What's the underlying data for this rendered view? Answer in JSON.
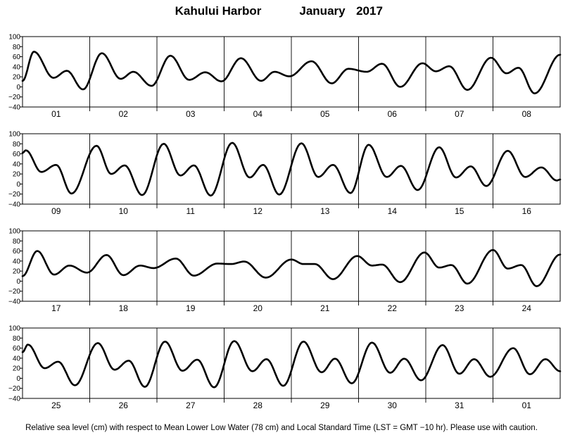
{
  "chart_data": {
    "type": "line",
    "title": {
      "station": "Kahului Harbor",
      "month": "January",
      "year": "2017"
    },
    "footnote": "Relative sea level (cm) with respect to Mean Lower Low Water (78 cm) and Local Standard Time (LST = GMT −10 hr). Please use with caution.",
    "ylim": [
      -40,
      100
    ],
    "yticks": [
      "100",
      "80",
      "60",
      "40",
      "20",
      "0",
      "−20",
      "−40"
    ],
    "grid": "vertical lines at day boundaries",
    "line_color": "#000000",
    "panels": [
      {
        "days": [
          "01",
          "02",
          "03",
          "04",
          "05",
          "06",
          "07",
          "08"
        ],
        "extrema": [
          [
            0,
            12
          ],
          [
            0.17,
            70
          ],
          [
            0.46,
            18
          ],
          [
            0.66,
            32
          ],
          [
            0.9,
            -5
          ],
          [
            1.18,
            67
          ],
          [
            1.46,
            16
          ],
          [
            1.65,
            30
          ],
          [
            1.92,
            2
          ],
          [
            2.2,
            62
          ],
          [
            2.48,
            14
          ],
          [
            2.72,
            29
          ],
          [
            2.96,
            11
          ],
          [
            3.25,
            57
          ],
          [
            3.55,
            12
          ],
          [
            3.75,
            30
          ],
          [
            3.97,
            21
          ],
          [
            4.3,
            51
          ],
          [
            4.6,
            7
          ],
          [
            4.85,
            36
          ],
          [
            5.12,
            30
          ],
          [
            5.35,
            46
          ],
          [
            5.62,
            0
          ],
          [
            5.95,
            47
          ],
          [
            6.15,
            31
          ],
          [
            6.35,
            41
          ],
          [
            6.62,
            -6
          ],
          [
            6.97,
            58
          ],
          [
            7.2,
            27
          ],
          [
            7.38,
            38
          ],
          [
            7.62,
            -13
          ],
          [
            8,
            64
          ]
        ]
      },
      {
        "days": [
          "09",
          "10",
          "11",
          "12",
          "13",
          "14",
          "15",
          "16"
        ],
        "extrema": [
          [
            0,
            62
          ],
          [
            0.05,
            67
          ],
          [
            0.28,
            24
          ],
          [
            0.5,
            38
          ],
          [
            0.73,
            -19
          ],
          [
            1.1,
            76
          ],
          [
            1.32,
            20
          ],
          [
            1.52,
            37
          ],
          [
            1.78,
            -22
          ],
          [
            2.1,
            80
          ],
          [
            2.35,
            17
          ],
          [
            2.55,
            37
          ],
          [
            2.8,
            -23
          ],
          [
            3.12,
            82
          ],
          [
            3.38,
            13
          ],
          [
            3.58,
            38
          ],
          [
            3.82,
            -21
          ],
          [
            4.15,
            81
          ],
          [
            4.4,
            14
          ],
          [
            4.62,
            38
          ],
          [
            4.88,
            -18
          ],
          [
            5.15,
            78
          ],
          [
            5.42,
            14
          ],
          [
            5.63,
            36
          ],
          [
            5.88,
            -12
          ],
          [
            6.2,
            73
          ],
          [
            6.45,
            13
          ],
          [
            6.67,
            35
          ],
          [
            6.9,
            -4
          ],
          [
            7.22,
            66
          ],
          [
            7.48,
            14
          ],
          [
            7.72,
            33
          ],
          [
            7.95,
            7
          ],
          [
            8,
            9
          ]
        ]
      },
      {
        "days": [
          "17",
          "18",
          "19",
          "20",
          "21",
          "22",
          "23",
          "24"
        ],
        "extrema": [
          [
            0,
            10
          ],
          [
            0.22,
            60
          ],
          [
            0.47,
            13
          ],
          [
            0.7,
            31
          ],
          [
            0.96,
            17
          ],
          [
            1.25,
            52
          ],
          [
            1.5,
            12
          ],
          [
            1.75,
            31
          ],
          [
            1.95,
            26
          ],
          [
            2.28,
            45
          ],
          [
            2.55,
            11
          ],
          [
            2.9,
            35
          ],
          [
            3.1,
            34
          ],
          [
            3.3,
            39
          ],
          [
            3.62,
            7
          ],
          [
            4.0,
            43
          ],
          [
            4.18,
            34
          ],
          [
            4.35,
            34
          ],
          [
            4.62,
            4
          ],
          [
            4.98,
            50
          ],
          [
            5.2,
            31
          ],
          [
            5.35,
            33
          ],
          [
            5.62,
            -2
          ],
          [
            5.98,
            57
          ],
          [
            6.2,
            27
          ],
          [
            6.38,
            32
          ],
          [
            6.62,
            -5
          ],
          [
            7.0,
            62
          ],
          [
            7.22,
            25
          ],
          [
            7.42,
            32
          ],
          [
            7.65,
            -10
          ],
          [
            8,
            53
          ]
        ]
      },
      {
        "days": [
          "25",
          "26",
          "27",
          "28",
          "29",
          "30",
          "31",
          "01"
        ],
        "extrema": [
          [
            0,
            52
          ],
          [
            0.08,
            67
          ],
          [
            0.33,
            20
          ],
          [
            0.53,
            33
          ],
          [
            0.78,
            -14
          ],
          [
            1.12,
            70
          ],
          [
            1.37,
            17
          ],
          [
            1.58,
            35
          ],
          [
            1.82,
            -17
          ],
          [
            2.12,
            73
          ],
          [
            2.38,
            15
          ],
          [
            2.6,
            37
          ],
          [
            2.85,
            -18
          ],
          [
            3.15,
            74
          ],
          [
            3.42,
            14
          ],
          [
            3.63,
            38
          ],
          [
            3.88,
            -15
          ],
          [
            4.18,
            73
          ],
          [
            4.45,
            12
          ],
          [
            4.65,
            39
          ],
          [
            4.9,
            -10
          ],
          [
            5.2,
            71
          ],
          [
            5.47,
            11
          ],
          [
            5.68,
            39
          ],
          [
            5.93,
            -4
          ],
          [
            6.25,
            66
          ],
          [
            6.5,
            9
          ],
          [
            6.72,
            38
          ],
          [
            6.96,
            3
          ],
          [
            7.3,
            60
          ],
          [
            7.55,
            8
          ],
          [
            7.78,
            38
          ],
          [
            8,
            14
          ]
        ]
      }
    ]
  }
}
